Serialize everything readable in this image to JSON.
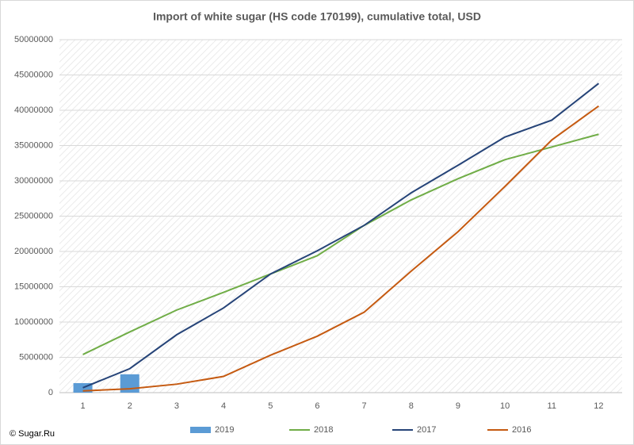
{
  "chart_data": {
    "type": "line",
    "title": "Import of white sugar (HS code 170199), cumulative total, USD",
    "source": "© Sugar.Ru",
    "categories": [
      "1",
      "2",
      "3",
      "4",
      "5",
      "6",
      "7",
      "8",
      "9",
      "10",
      "11",
      "12"
    ],
    "series": [
      {
        "name": "2019",
        "type": "bar",
        "color": "#5b9bd5",
        "values": [
          1350000,
          2600000,
          null,
          null,
          null,
          null,
          null,
          null,
          null,
          null,
          null,
          null
        ]
      },
      {
        "name": "2018",
        "type": "line",
        "color": "#70ad47",
        "values": [
          5400000,
          8600000,
          11700000,
          14200000,
          16800000,
          19400000,
          23700000,
          27300000,
          30300000,
          33000000,
          34800000,
          36600000
        ]
      },
      {
        "name": "2017",
        "type": "line",
        "color": "#264478",
        "values": [
          700000,
          3400000,
          8200000,
          12000000,
          16800000,
          20100000,
          23700000,
          28300000,
          32200000,
          36200000,
          38600000,
          43800000
        ]
      },
      {
        "name": "2016",
        "type": "line",
        "color": "#c55a11",
        "values": [
          250000,
          550000,
          1200000,
          2300000,
          5300000,
          8000000,
          11400000,
          17200000,
          22800000,
          29200000,
          35800000,
          40600000
        ]
      }
    ],
    "ylim": [
      0,
      50000000
    ],
    "yticks": [
      0,
      5000000,
      10000000,
      15000000,
      20000000,
      25000000,
      30000000,
      35000000,
      40000000,
      45000000,
      50000000
    ],
    "grid": true,
    "legend": "bottom"
  }
}
